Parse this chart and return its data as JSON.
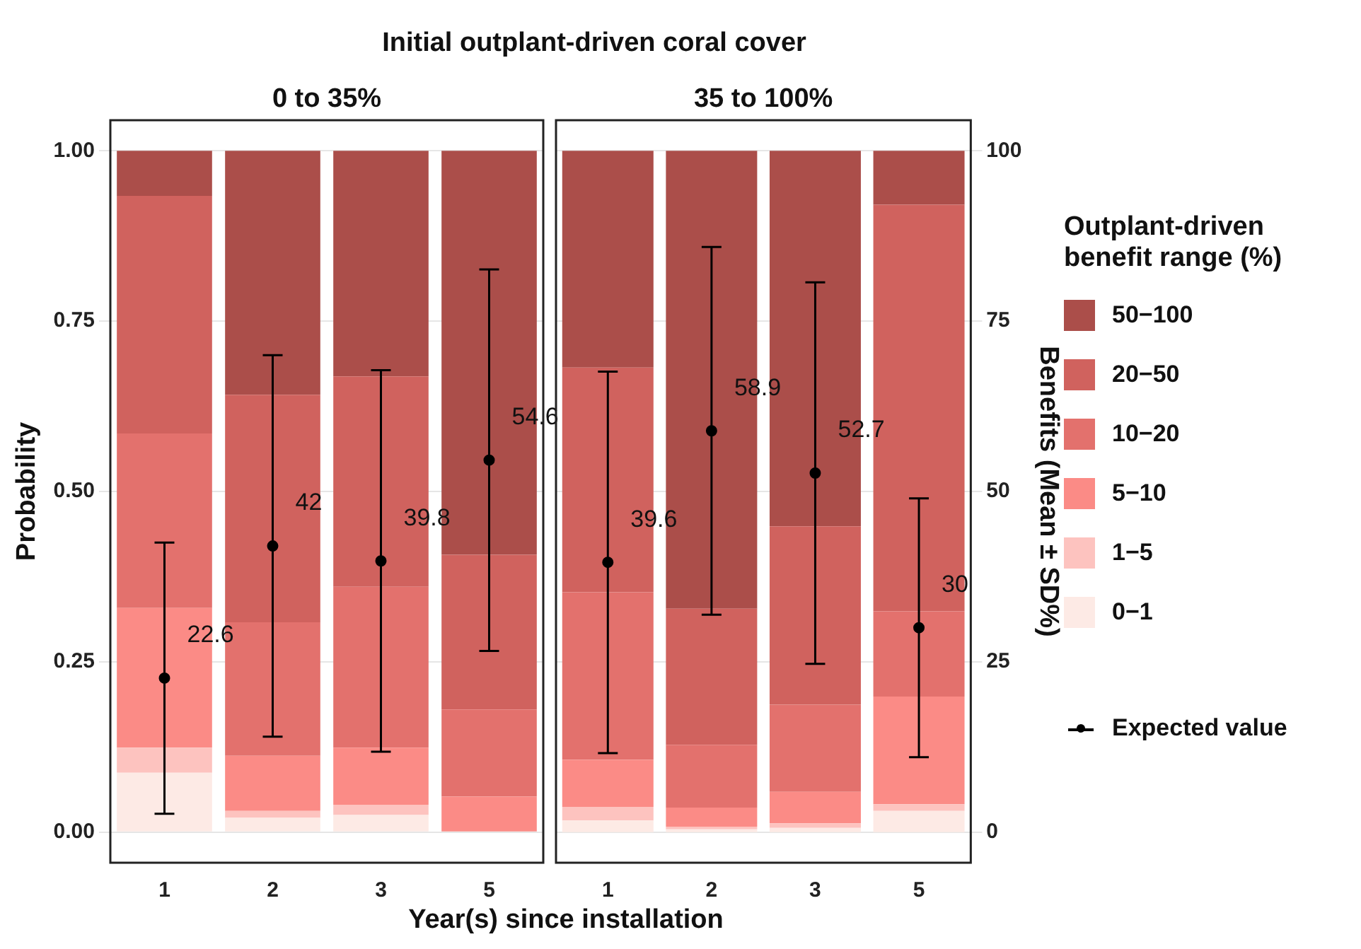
{
  "chart_data": [
    {
      "type": "bar",
      "title": "Initial outplant-driven coral cover",
      "subtitle": "0 to 35%",
      "xlabel": "Year(s) since installation",
      "ylabel": "Probability",
      "legend": "right",
      "stacked": true,
      "grid": "y",
      "marker": "circle",
      "categories": [
        "1",
        "2",
        "3",
        "5"
      ],
      "series": [
        {
          "name": "0−1",
          "color": "#fdeae5",
          "values": [
            0.087,
            0.021,
            0.025,
            null
          ]
        },
        {
          "name": "1−5",
          "color": "#fdc3bf",
          "values": [
            0.037,
            0.01,
            0.015,
            null
          ]
        },
        {
          "name": "5−10",
          "color": "#fb8b86",
          "values": [
            0.205,
            0.081,
            0.084,
            0.052
          ]
        },
        {
          "name": "10−20",
          "color": "#e3716d",
          "values": [
            0.256,
            0.196,
            0.236,
            0.128
          ]
        },
        {
          "name": "20−50",
          "color": "#d0625e",
          "values": [
            0.349,
            0.334,
            0.309,
            0.227
          ]
        },
        {
          "name": "50−100",
          "color": "#ab4e4a",
          "values": [
            0.066,
            0.358,
            0.331,
            0.593
          ]
        },
        {
          "name": "Expected value",
          "type": "scatter",
          "axis": "y2",
          "color": "#000000",
          "values": [
            22.6,
            42,
            39.8,
            54.6
          ],
          "errors": [
            19.9,
            28,
            28,
            28
          ],
          "value_labels": [
            "22.6",
            "42",
            "39.8",
            "54.6"
          ]
        }
      ],
      "ylim": [
        -0.045,
        1.045
      ],
      "yticks": [
        {
          "value": 0,
          "label": "0.00"
        },
        {
          "value": 0.25,
          "label": "0.25"
        },
        {
          "value": 0.5,
          "label": "0.50"
        },
        {
          "value": 0.75,
          "label": "0.75"
        },
        {
          "value": 1,
          "label": "1.00"
        }
      ],
      "y2lim": [
        -4.5,
        104.5
      ]
    },
    {
      "type": "bar",
      "subtitle": "35 to 100%",
      "y2label": "Benefits (Mean ± SD%)",
      "legend": "right",
      "legend_title": "Outplant-driven benefit range (%)",
      "stacked": true,
      "grid": "y",
      "marker": "circle",
      "categories": [
        "1",
        "2",
        "3",
        "5"
      ],
      "series": [
        {
          "name": "0−1",
          "color": "#fdeae5",
          "values": [
            0.017,
            0.004,
            0.006,
            0.031
          ]
        },
        {
          "name": "1−5",
          "color": "#fdc3bf",
          "values": [
            0.02,
            0.004,
            0.007,
            0.01
          ]
        },
        {
          "name": "5−10",
          "color": "#fb8b86",
          "values": [
            0.069,
            0.028,
            0.046,
            0.158
          ]
        },
        {
          "name": "10−20",
          "color": "#e3716d",
          "values": [
            0.246,
            0.092,
            0.128,
            0.125
          ]
        },
        {
          "name": "20−50",
          "color": "#d0625e",
          "values": [
            0.33,
            0.2,
            0.262,
            0.597
          ]
        },
        {
          "name": "50−100",
          "color": "#ab4e4a",
          "values": [
            0.318,
            0.672,
            0.551,
            0.079
          ]
        },
        {
          "name": "Expected value",
          "type": "scatter",
          "axis": "y2",
          "color": "#000000",
          "values": [
            39.6,
            58.9,
            52.7,
            30
          ],
          "errors": [
            28,
            27,
            28,
            19
          ],
          "value_labels": [
            "39.6",
            "58.9",
            "52.7",
            "30"
          ]
        }
      ],
      "ylim": [
        -0.045,
        1.045
      ],
      "y2lim": [
        -4.5,
        104.5
      ],
      "y2ticks": [
        0,
        25,
        50,
        75,
        100
      ]
    }
  ]
}
